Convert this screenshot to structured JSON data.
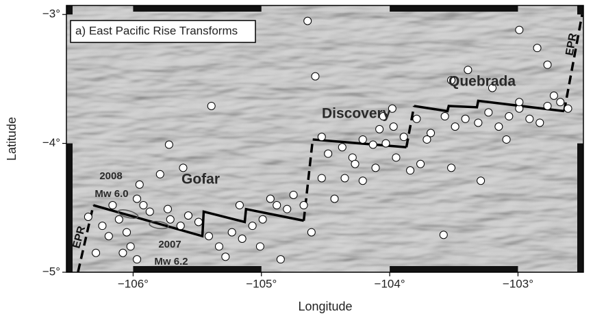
{
  "chart_data": {
    "type": "map",
    "title": "a) East Pacific Rise Transforms",
    "x_label": "Longitude",
    "y_label": "Latitude",
    "xlim": [
      -106.52,
      -102.49
    ],
    "ylim": [
      -5,
      -2.93
    ],
    "xticks": [
      {
        "value": -106,
        "label": "−106°"
      },
      {
        "value": -105,
        "label": "−105°"
      },
      {
        "value": -104,
        "label": "−104°"
      },
      {
        "value": -103,
        "label": "−103°"
      }
    ],
    "yticks": [
      {
        "value": -3,
        "label": "−3°"
      },
      {
        "value": -4,
        "label": "−4°"
      },
      {
        "value": -5,
        "label": "−5°"
      }
    ],
    "annotations": [
      "Gofar",
      "Discovery",
      "Quebrada",
      "EPR",
      "EPR",
      "2008",
      "Mw 6.0",
      "2007",
      "Mw 6.2"
    ],
    "lines": [
      {
        "dash": true,
        "x": [
          -106.43,
          -106.31
        ],
        "y": [
          -5.0,
          -4.48
        ]
      },
      {
        "dash": false,
        "x": [
          -106.31,
          -105.46,
          -105.45,
          -105.13,
          -105.12,
          -104.67
        ],
        "y": [
          -4.48,
          -4.72,
          -4.53,
          -4.61,
          -4.51,
          -4.6
        ]
      },
      {
        "dash": true,
        "x": [
          -104.67,
          -104.6
        ],
        "y": [
          -4.6,
          -3.97
        ]
      },
      {
        "dash": false,
        "x": [
          -104.6,
          -103.87
        ],
        "y": [
          -3.97,
          -4.03
        ]
      },
      {
        "dash": true,
        "x": [
          -103.87,
          -103.81
        ],
        "y": [
          -4.03,
          -3.71
        ]
      },
      {
        "dash": false,
        "x": [
          -103.81,
          -103.55,
          -103.54,
          -103.32,
          -103.31,
          -102.64
        ],
        "y": [
          -3.71,
          -3.75,
          -3.71,
          -3.72,
          -3.67,
          -3.75
        ]
      },
      {
        "dash": true,
        "x": [
          -102.64,
          -102.5
        ],
        "y": [
          -3.75,
          -3.0
        ]
      }
    ],
    "x": [
      -106.35,
      -106.24,
      -106.19,
      -106.16,
      -106.11,
      -106.05,
      -106.02,
      -105.97,
      -105.95,
      -105.92,
      -105.87,
      -105.73,
      -105.71,
      -105.63,
      -105.57,
      -105.49,
      -105.41,
      -105.33,
      -105.28,
      -105.23,
      -105.15,
      -105.07,
      -104.99,
      -104.93,
      -104.88,
      -104.8,
      -104.75,
      -104.85,
      -105.01,
      -105.17,
      -104.67,
      -104.61,
      -104.53,
      -104.43,
      -105.72,
      -105.61,
      -105.79,
      -106.29,
      -105.97,
      -106.08,
      -104.53,
      -104.48,
      -104.37,
      -104.29,
      -104.21,
      -104.13,
      -104.08,
      -104.03,
      -103.97,
      -103.95,
      -103.89,
      -104.11,
      -104.27,
      -104.35,
      -104.21,
      -104.05,
      -103.98,
      -103.79,
      -103.71,
      -103.68,
      -103.84,
      -103.76,
      -103.57,
      -103.49,
      -103.41,
      -103.31,
      -103.23,
      -103.15,
      -103.07,
      -102.99,
      -102.91,
      -102.83,
      -102.77,
      -102.67,
      -102.72,
      -102.61,
      -102.99,
      -103.39,
      -103.2,
      -102.77,
      -102.85,
      -102.99,
      -103.09,
      -103.52,
      -103.29,
      -103.58,
      -104.64,
      -105.39,
      -104.58,
      -103.52
    ],
    "values": [
      -4.57,
      -4.64,
      -4.72,
      -4.48,
      -4.59,
      -4.69,
      -4.8,
      -4.43,
      -4.32,
      -4.48,
      -4.53,
      -4.51,
      -4.59,
      -4.64,
      -4.56,
      -4.61,
      -4.72,
      -4.8,
      -4.88,
      -4.69,
      -4.74,
      -4.64,
      -4.59,
      -4.43,
      -4.48,
      -4.51,
      -4.4,
      -4.9,
      -4.8,
      -4.48,
      -4.48,
      -4.69,
      -4.27,
      -4.43,
      -4.01,
      -4.19,
      -4.24,
      -4.85,
      -4.9,
      -4.85,
      -3.95,
      -4.08,
      -4.03,
      -4.11,
      -3.97,
      -4.01,
      -3.89,
      -4.0,
      -3.87,
      -4.11,
      -3.95,
      -4.19,
      -4.16,
      -4.27,
      -4.29,
      -3.79,
      -3.73,
      -3.81,
      -3.97,
      -3.92,
      -4.21,
      -4.16,
      -3.79,
      -3.87,
      -3.81,
      -3.84,
      -3.76,
      -3.87,
      -3.79,
      -3.73,
      -3.81,
      -3.84,
      -3.71,
      -3.68,
      -3.63,
      -3.73,
      -3.68,
      -3.43,
      -3.57,
      -3.39,
      -3.26,
      -3.12,
      -3.97,
      -4.19,
      -4.29,
      -4.71,
      -3.05,
      -3.71,
      -3.48,
      -3.51
    ]
  }
}
